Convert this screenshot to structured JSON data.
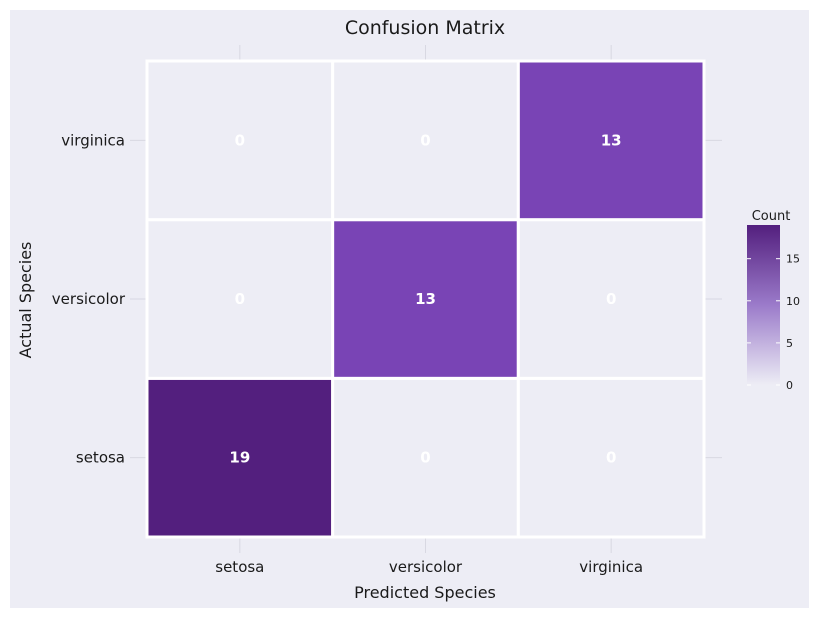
{
  "chart_data": {
    "type": "heatmap",
    "title": "Confusion Matrix",
    "xlabel": "Predicted Species",
    "ylabel": "Actual Species",
    "x_categories": [
      "setosa",
      "versicolor",
      "virginica"
    ],
    "y_categories": [
      "setosa",
      "versicolor",
      "virginica"
    ],
    "values": [
      [
        19,
        0,
        0
      ],
      [
        0,
        13,
        0
      ],
      [
        0,
        0,
        13
      ]
    ],
    "value_range": [
      0,
      19
    ],
    "colorbar": {
      "title": "Count",
      "ticks": [
        0,
        5,
        10,
        15
      ]
    },
    "colors": {
      "low": "#ededf5",
      "high": "#531f7e",
      "mid": "#7a44b6"
    },
    "legend_position": "right"
  }
}
